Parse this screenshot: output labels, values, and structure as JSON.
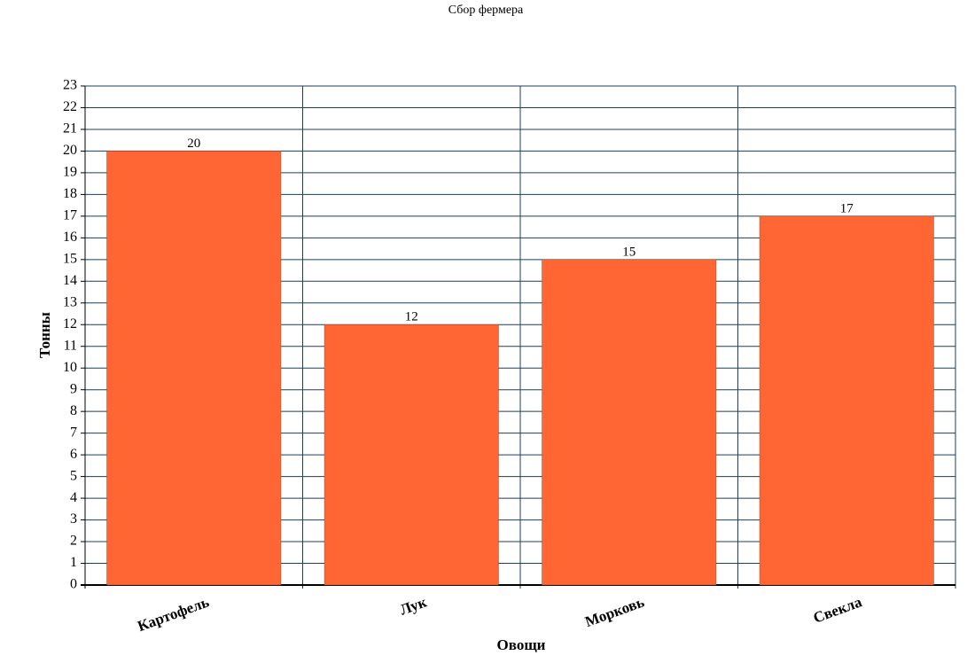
{
  "chart_data": {
    "type": "bar",
    "title": "Сбор фермера",
    "x_label": "Овощи",
    "y_label": "Тонны",
    "categories": [
      "Картофель",
      "Лук",
      "Морковь",
      "Свекла"
    ],
    "values": [
      20,
      12,
      15,
      17
    ],
    "color": "#ff6633",
    "ylim": [
      0,
      23
    ],
    "yticks": [
      0,
      1,
      2,
      3,
      4,
      5,
      6,
      7,
      8,
      9,
      10,
      11,
      12,
      13,
      14,
      15,
      16,
      17,
      18,
      19,
      20,
      21,
      22,
      23
    ],
    "grid": true
  }
}
